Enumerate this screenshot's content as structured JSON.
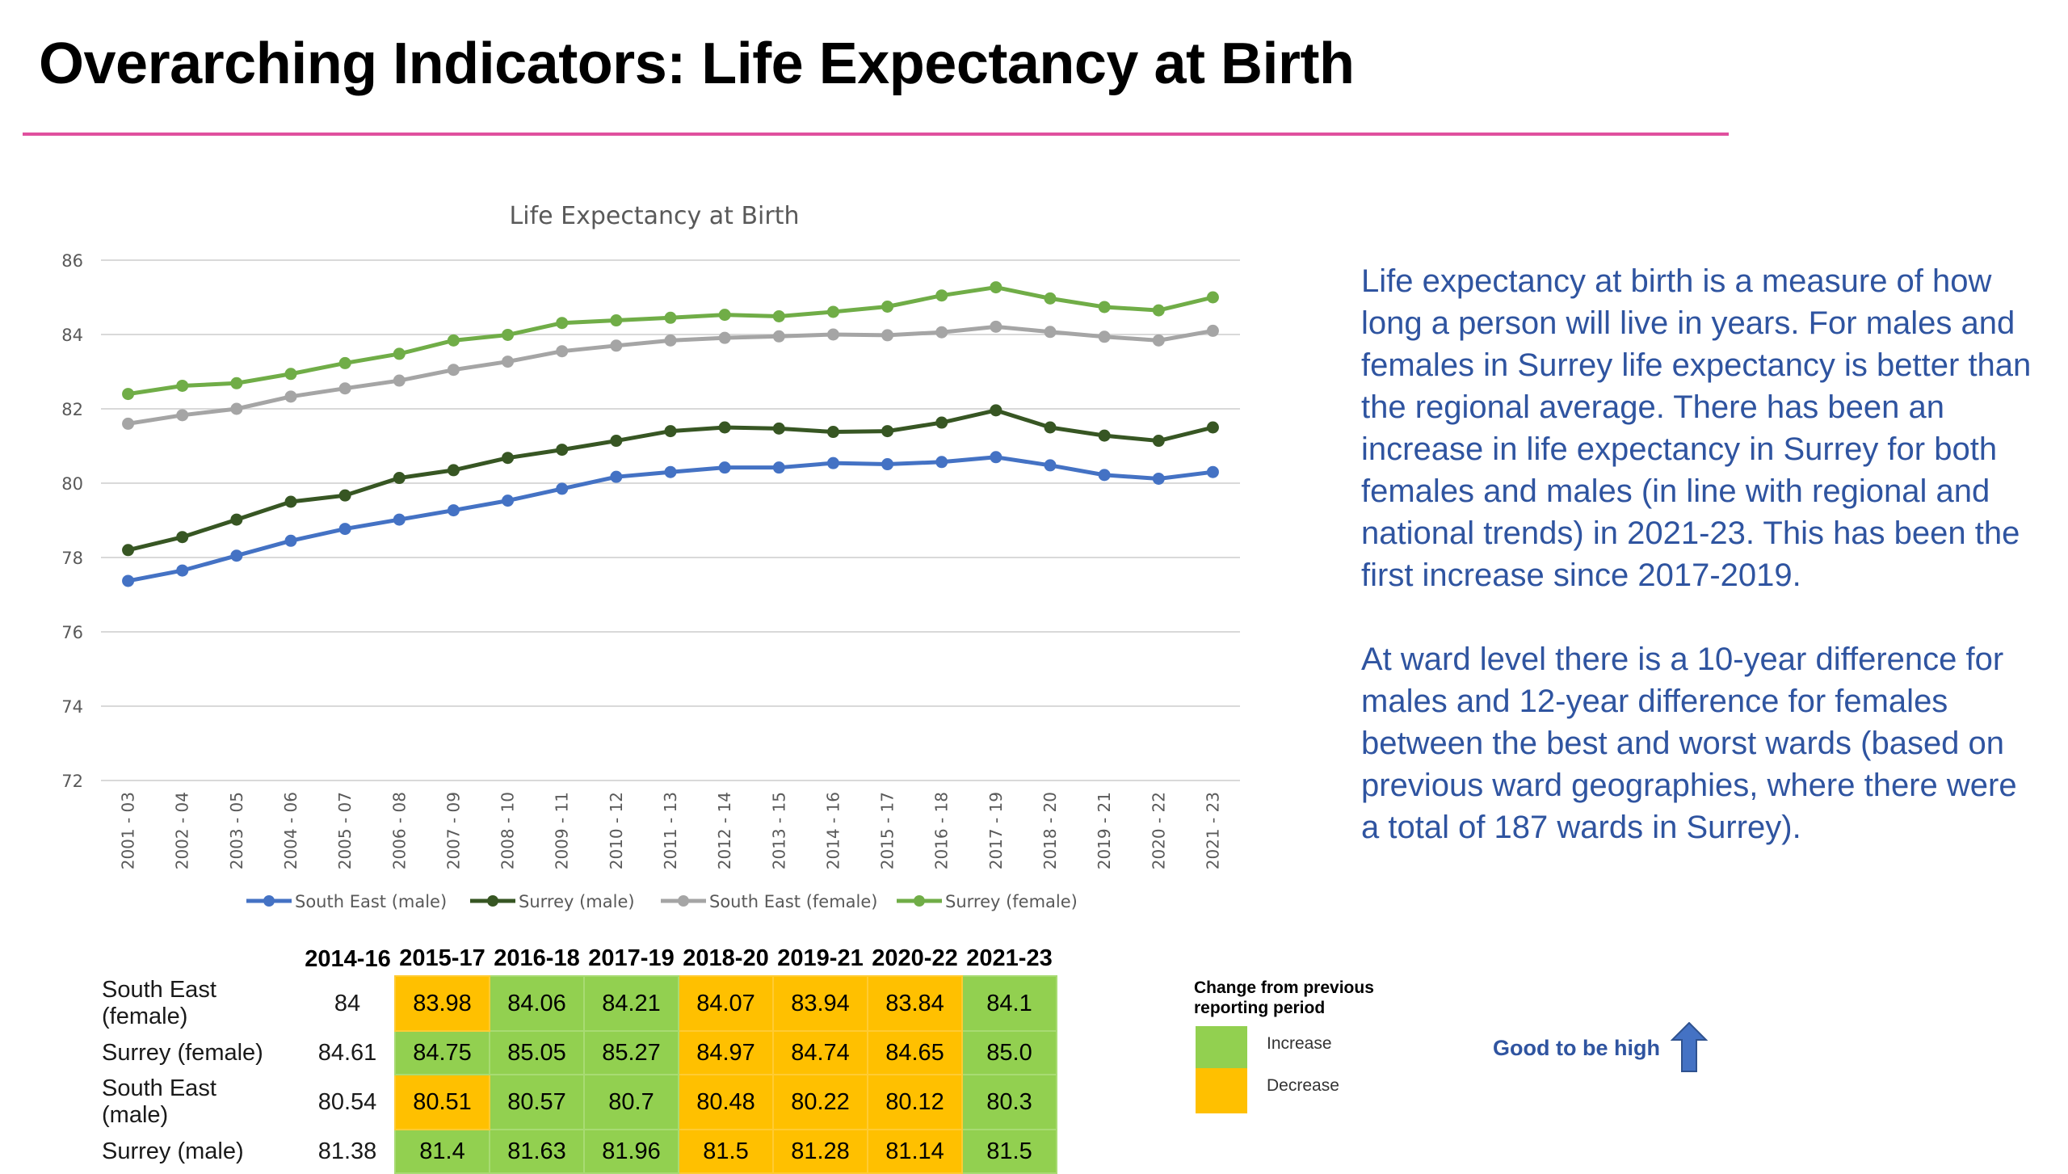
{
  "page": {
    "title": "Overarching Indicators: Life Expectancy at Birth",
    "rule_color": "#e0509e"
  },
  "description": {
    "paragraph_1": "Life expectancy at birth is a measure of how long a person will live in years. For males and females in Surrey life expectancy is better than the regional average. There has been an increase in life expectancy in Surrey for both females and males (in line with regional and national trends) in 2021-23. This has been the first increase since 2017-2019.",
    "paragraph_2": "At ward level there is a 10-year difference for males and 12-year difference for females between the best and worst wards (based on previous ward geographies, where there were a total of 187 wards in Surrey).",
    "text_color": "#2f54a0"
  },
  "chart_data": {
    "type": "line",
    "title": "Life Expectancy at Birth",
    "xlabel": "",
    "ylabel": "",
    "ylim": [
      72,
      86
    ],
    "yticks": [
      72,
      74,
      76,
      78,
      80,
      82,
      84,
      86
    ],
    "grid": true,
    "legend_position": "bottom",
    "x": [
      "2001 - 03",
      "2002 - 04",
      "2003 - 05",
      "2004 - 06",
      "2005 - 07",
      "2006 - 08",
      "2007 - 09",
      "2008 - 10",
      "2009 - 11",
      "2010 - 12",
      "2011 - 13",
      "2012 - 14",
      "2013 - 15",
      "2014 - 16",
      "2015 - 17",
      "2016 - 18",
      "2017 - 19",
      "2018 - 20",
      "2019 - 21",
      "2020 - 22",
      "2021 - 23"
    ],
    "series": [
      {
        "name": "South East (male)",
        "color": "#4472c4",
        "values": [
          77.37,
          77.65,
          78.05,
          78.45,
          78.77,
          79.02,
          79.27,
          79.53,
          79.85,
          80.17,
          80.3,
          80.42,
          80.42,
          80.54,
          80.51,
          80.57,
          80.7,
          80.48,
          80.22,
          80.12,
          80.3
        ]
      },
      {
        "name": "Surrey (male)",
        "color": "#375623",
        "values": [
          78.2,
          78.55,
          79.02,
          79.5,
          79.67,
          80.14,
          80.35,
          80.68,
          80.9,
          81.14,
          81.4,
          81.5,
          81.47,
          81.38,
          81.4,
          81.63,
          81.96,
          81.5,
          81.28,
          81.14,
          81.5
        ]
      },
      {
        "name": "South East (female)",
        "color": "#a5a5a5",
        "values": [
          81.6,
          81.83,
          82.0,
          82.33,
          82.55,
          82.76,
          83.05,
          83.27,
          83.55,
          83.7,
          83.84,
          83.91,
          83.95,
          84.0,
          83.98,
          84.06,
          84.21,
          84.07,
          83.94,
          83.84,
          84.1
        ]
      },
      {
        "name": "Surrey (female)",
        "color": "#70ad47",
        "values": [
          82.4,
          82.62,
          82.69,
          82.94,
          83.23,
          83.48,
          83.84,
          83.99,
          84.31,
          84.38,
          84.45,
          84.53,
          84.49,
          84.61,
          84.75,
          85.05,
          85.27,
          84.97,
          84.74,
          84.65,
          85.0
        ]
      }
    ]
  },
  "table": {
    "columns": [
      "2014-16",
      "2015-17",
      "2016-18",
      "2017-19",
      "2018-20",
      "2019-21",
      "2020-22",
      "2021-23"
    ],
    "rows": [
      {
        "label": "South East (female)",
        "label_line1": "South East",
        "label_line2": "(female)",
        "values": [
          "84",
          "83.98",
          "84.06",
          "84.21",
          "84.07",
          "83.94",
          "83.84",
          "84.1"
        ],
        "change": [
          "none",
          "decrease",
          "increase",
          "increase",
          "decrease",
          "decrease",
          "decrease",
          "increase"
        ]
      },
      {
        "label": "Surrey (female)",
        "label_line1": "Surrey (female)",
        "label_line2": "",
        "values": [
          "84.61",
          "84.75",
          "85.05",
          "85.27",
          "84.97",
          "84.74",
          "84.65",
          "85.0"
        ],
        "change": [
          "none",
          "increase",
          "increase",
          "increase",
          "decrease",
          "decrease",
          "decrease",
          "increase"
        ]
      },
      {
        "label": "South East (male)",
        "label_line1": "South East",
        "label_line2": "(male)",
        "values": [
          "80.54",
          "80.51",
          "80.57",
          "80.7",
          "80.48",
          "80.22",
          "80.12",
          "80.3"
        ],
        "change": [
          "none",
          "decrease",
          "increase",
          "increase",
          "decrease",
          "decrease",
          "decrease",
          "increase"
        ]
      },
      {
        "label": "Surrey (male)",
        "label_line1": "Surrey (male)",
        "label_line2": "",
        "values": [
          "81.38",
          "81.4",
          "81.63",
          "81.96",
          "81.5",
          "81.28",
          "81.14",
          "81.5"
        ],
        "change": [
          "none",
          "increase",
          "increase",
          "increase",
          "decrease",
          "decrease",
          "decrease",
          "increase"
        ]
      }
    ]
  },
  "change_legend": {
    "title_line1": "Change from previous",
    "title_line2": "reporting period",
    "increase_label": "Increase",
    "decrease_label": "Decrease",
    "increase_color": "#92d050",
    "decrease_color": "#ffc000"
  },
  "polarity": {
    "label": "Good to be high",
    "icon": "up-arrow-icon",
    "color": "#4472c4"
  }
}
